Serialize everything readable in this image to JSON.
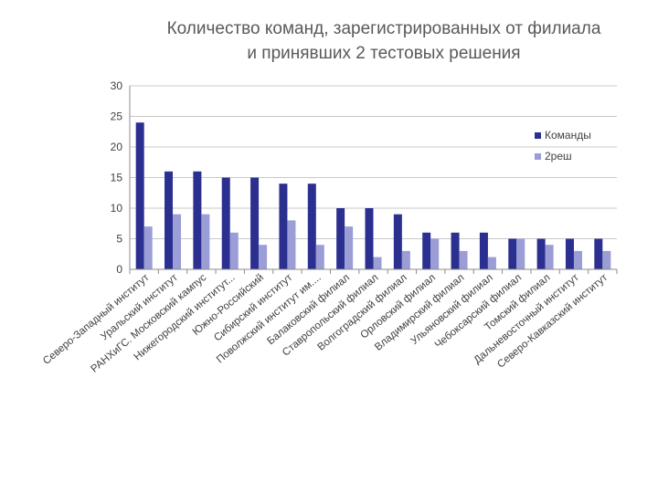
{
  "chart_data": {
    "type": "bar",
    "title_line1": "Количество команд, зарегистрированных от филиала",
    "title_line2": "и принявших 2 тестовых решения",
    "xlabel": "",
    "ylabel": "",
    "ylim": [
      0,
      30
    ],
    "yticks": [
      "0",
      "5",
      "10",
      "15",
      "20",
      "25",
      "30"
    ],
    "grid": "horizontal",
    "legend_position": "right",
    "categories": [
      "Северо-Западный институт",
      "Уральский институт",
      "РАНХиГС. Московский кампус",
      "Нижегородский институт...",
      "Южно-Российский",
      "Сибирский институт",
      "Поволжский институт им....",
      "Балаковский филиал",
      "Ставропольский филиал",
      "Волгоградский филиал",
      "Орловский филиал",
      "Владимирский филиал",
      "Ульяновский филиал",
      "Чебоксарский филиал",
      "Томский филиал",
      "Дальневосточный институт",
      "Северо-Кавказский институт"
    ],
    "series": [
      {
        "name": "Команды",
        "color": "#2b2f8f",
        "values": [
          24,
          16,
          16,
          15,
          15,
          14,
          14,
          10,
          10,
          9,
          6,
          6,
          6,
          5,
          5,
          5,
          5
        ]
      },
      {
        "name": "2реш",
        "color": "#9a9dd6",
        "values": [
          7,
          9,
          9,
          6,
          4,
          8,
          4,
          7,
          2,
          3,
          5,
          3,
          2,
          5,
          4,
          3,
          3
        ]
      }
    ]
  }
}
